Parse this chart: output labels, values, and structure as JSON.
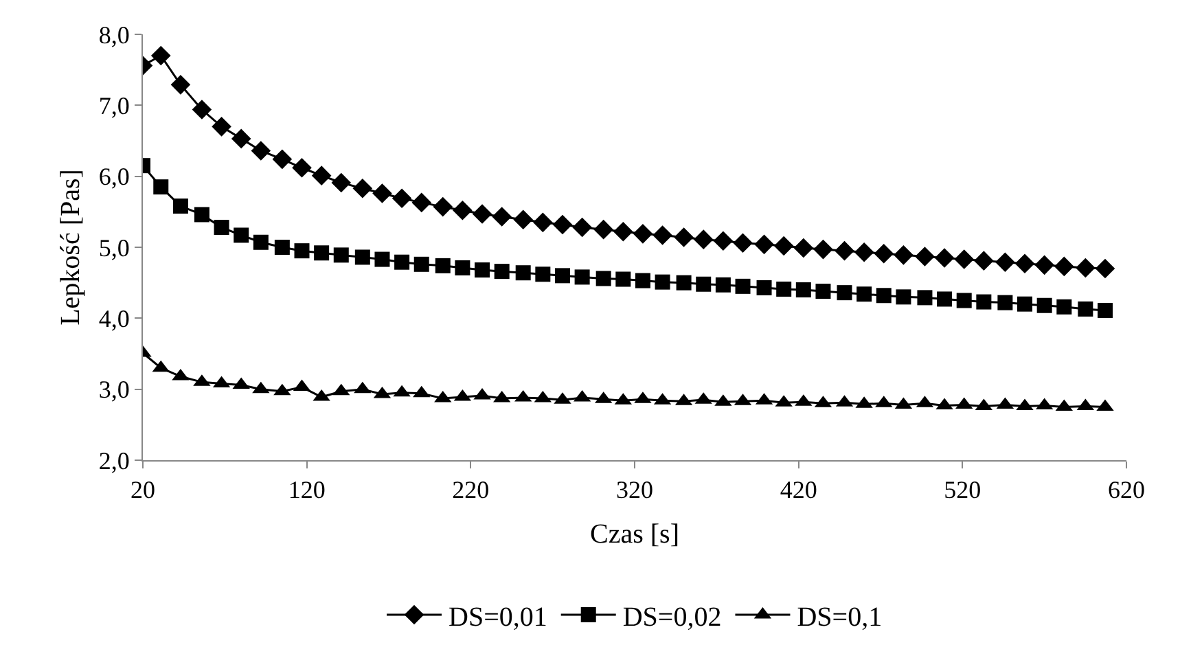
{
  "chart_data": {
    "type": "line",
    "xlabel": "Czas [s]",
    "ylabel": "Lepkość [Pas]",
    "x": [
      20,
      31,
      43,
      56,
      68,
      80,
      92,
      105,
      117,
      129,
      141,
      154,
      166,
      178,
      190,
      203,
      215,
      227,
      239,
      252,
      264,
      276,
      288,
      301,
      313,
      325,
      337,
      350,
      362,
      374,
      386,
      399,
      411,
      423,
      435,
      448,
      460,
      472,
      484,
      497,
      509,
      521,
      533,
      546,
      558,
      570,
      582,
      595,
      607
    ],
    "series": [
      {
        "name": "DS=0,01",
        "color": "#000000",
        "marker": "diamond",
        "values": [
          7.56,
          7.7,
          7.29,
          6.94,
          6.7,
          6.53,
          6.36,
          6.24,
          6.12,
          6.01,
          5.91,
          5.83,
          5.76,
          5.69,
          5.63,
          5.57,
          5.52,
          5.47,
          5.43,
          5.39,
          5.35,
          5.32,
          5.28,
          5.25,
          5.22,
          5.19,
          5.17,
          5.14,
          5.11,
          5.09,
          5.06,
          5.04,
          5.02,
          4.99,
          4.97,
          4.95,
          4.93,
          4.91,
          4.89,
          4.87,
          4.85,
          4.83,
          4.81,
          4.79,
          4.77,
          4.75,
          4.73,
          4.71,
          4.7
        ]
      },
      {
        "name": "DS=0,02",
        "color": "#000000",
        "marker": "square",
        "values": [
          6.15,
          5.85,
          5.58,
          5.46,
          5.28,
          5.17,
          5.07,
          5.0,
          4.95,
          4.92,
          4.89,
          4.86,
          4.83,
          4.79,
          4.76,
          4.74,
          4.71,
          4.68,
          4.66,
          4.64,
          4.62,
          4.6,
          4.58,
          4.56,
          4.55,
          4.53,
          4.51,
          4.5,
          4.48,
          4.47,
          4.45,
          4.43,
          4.41,
          4.4,
          4.38,
          4.36,
          4.34,
          4.32,
          4.3,
          4.29,
          4.27,
          4.25,
          4.23,
          4.22,
          4.2,
          4.18,
          4.16,
          4.13,
          4.11
        ]
      },
      {
        "name": "DS=0,1",
        "color": "#000000",
        "marker": "triangle",
        "values": [
          3.51,
          3.3,
          3.18,
          3.1,
          3.08,
          3.06,
          3.0,
          2.97,
          3.03,
          2.89,
          2.97,
          3.0,
          2.93,
          2.95,
          2.94,
          2.87,
          2.89,
          2.91,
          2.87,
          2.88,
          2.87,
          2.85,
          2.88,
          2.86,
          2.84,
          2.86,
          2.84,
          2.83,
          2.85,
          2.82,
          2.83,
          2.84,
          2.81,
          2.82,
          2.8,
          2.81,
          2.79,
          2.8,
          2.78,
          2.8,
          2.77,
          2.78,
          2.76,
          2.78,
          2.76,
          2.77,
          2.75,
          2.76,
          2.75
        ]
      }
    ],
    "xlim": [
      20,
      620
    ],
    "xticks": [
      20,
      120,
      220,
      320,
      420,
      520,
      620
    ],
    "ylim": [
      2,
      8
    ],
    "yticks": [
      {
        "value": 2,
        "label": "2,0"
      },
      {
        "value": 3,
        "label": "3,0"
      },
      {
        "value": 4,
        "label": "4,0"
      },
      {
        "value": 5,
        "label": "5,0"
      },
      {
        "value": 6,
        "label": "6,0"
      },
      {
        "value": 7,
        "label": "7,0"
      },
      {
        "value": 8,
        "label": "8,0"
      }
    ],
    "legend": "bottom",
    "line_style": "solid"
  }
}
